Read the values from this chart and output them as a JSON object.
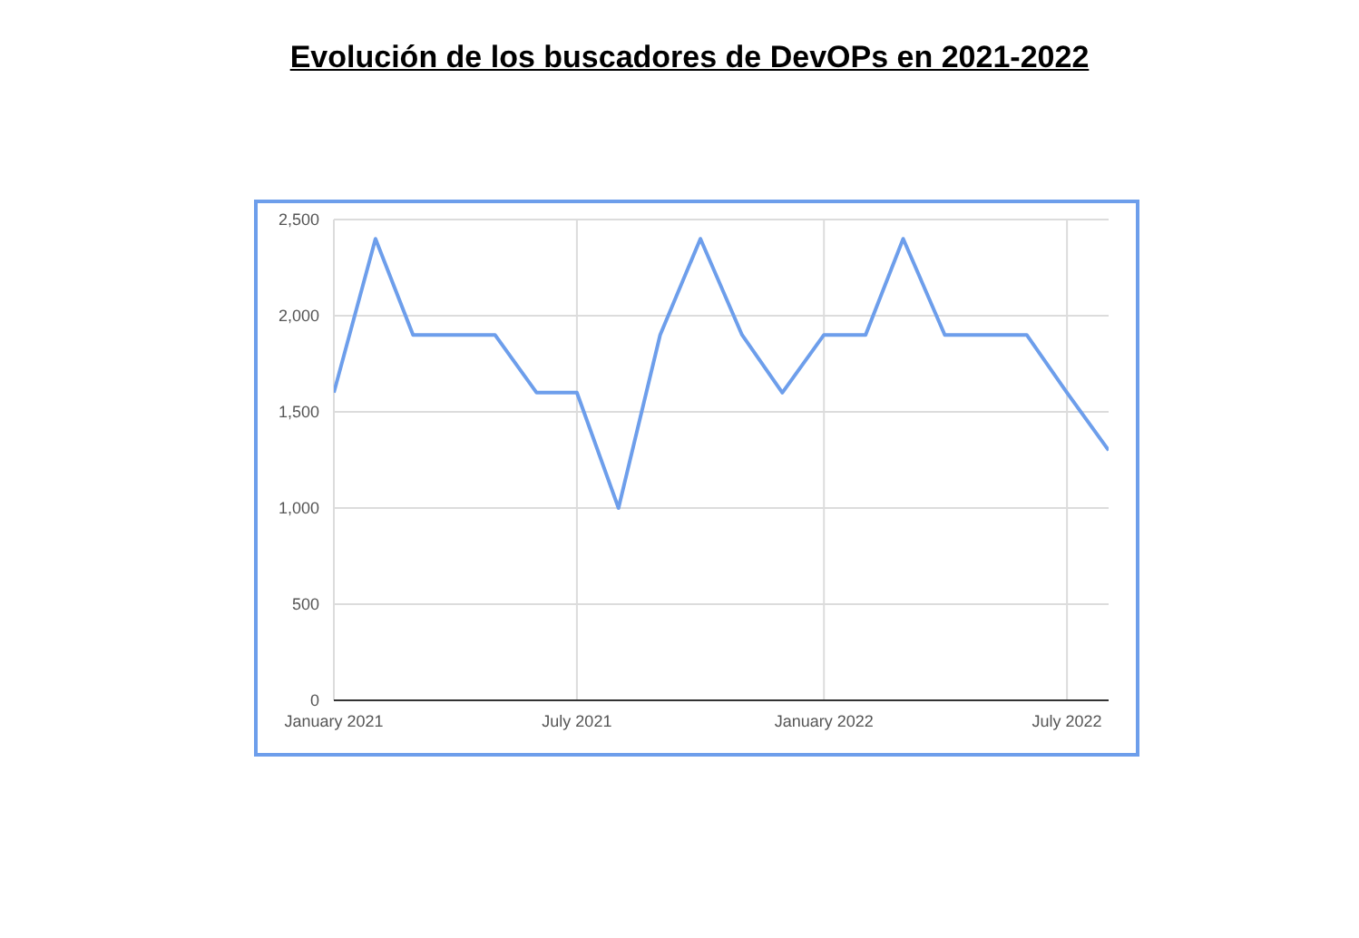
{
  "chart_data": {
    "type": "line",
    "title": "Evolución de los buscadores de DevOPs en 2021-2022",
    "x": [
      "2021-01",
      "2021-02",
      "2021-03",
      "2021-04",
      "2021-05",
      "2021-06",
      "2021-07",
      "2021-08",
      "2021-09",
      "2021-10",
      "2021-11",
      "2021-12",
      "2022-01",
      "2022-02",
      "2022-03",
      "2022-04",
      "2022-05",
      "2022-06",
      "2022-07",
      "2022-08"
    ],
    "values": [
      1600,
      2400,
      1900,
      1900,
      1900,
      1600,
      1600,
      1000,
      1900,
      2400,
      1900,
      1600,
      1900,
      1900,
      2400,
      1900,
      1900,
      1900,
      1600,
      1300
    ],
    "color": "#6d9eeb",
    "xlim": [
      "2021-01",
      "2022-08"
    ],
    "xticks": [
      {
        "value": "2021-01",
        "label": "January 2021"
      },
      {
        "value": "2021-07",
        "label": "July 2021"
      },
      {
        "value": "2022-01",
        "label": "January 2022"
      },
      {
        "value": "2022-07",
        "label": "July 2022"
      }
    ],
    "ylim": [
      0,
      2500
    ],
    "yticks": [
      {
        "value": 0,
        "label": "0"
      },
      {
        "value": 500,
        "label": "500"
      },
      {
        "value": 1000,
        "label": "1,000"
      },
      {
        "value": 1500,
        "label": "1,500"
      },
      {
        "value": 2000,
        "label": "2,000"
      },
      {
        "value": 2500,
        "label": "2,500"
      }
    ],
    "grid": true,
    "legend": false,
    "marker": "none",
    "line_style": "solid"
  }
}
